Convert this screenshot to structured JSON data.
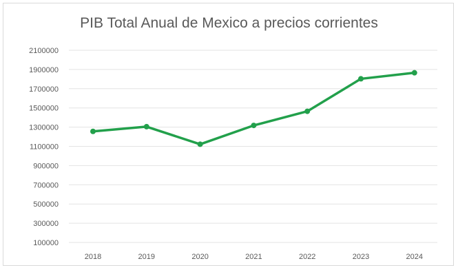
{
  "chart_data": {
    "type": "line",
    "title": "PIB Total Anual de Mexico a precios corrientes",
    "xlabel": "",
    "ylabel": "",
    "categories": [
      "2018",
      "2019",
      "2020",
      "2021",
      "2022",
      "2023",
      "2024"
    ],
    "series": [
      {
        "values": [
          1256000,
          1305000,
          1122000,
          1318000,
          1465000,
          1803000,
          1866000
        ]
      }
    ],
    "yticks": [
      100000,
      300000,
      500000,
      700000,
      900000,
      1100000,
      1300000,
      1500000,
      1700000,
      1900000,
      2100000
    ],
    "ylim": [
      100000,
      2100000
    ],
    "grid": true,
    "legend": "none",
    "line_color": "#22a04b"
  }
}
